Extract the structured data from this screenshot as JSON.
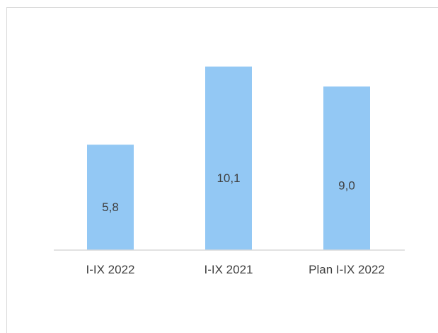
{
  "chart_data": {
    "type": "bar",
    "categories": [
      "I-IX 2022",
      "I-IX 2021",
      "Plan I-IX 2022"
    ],
    "values": [
      5.8,
      10.1,
      9.0
    ],
    "value_labels": [
      "5,8",
      "10,1",
      "9,0"
    ],
    "ylim": [
      0,
      11.5
    ],
    "grid": false,
    "colors": {
      "bar": "#93c8f4",
      "text": "#404040",
      "axis": "#d9d9d9"
    }
  }
}
